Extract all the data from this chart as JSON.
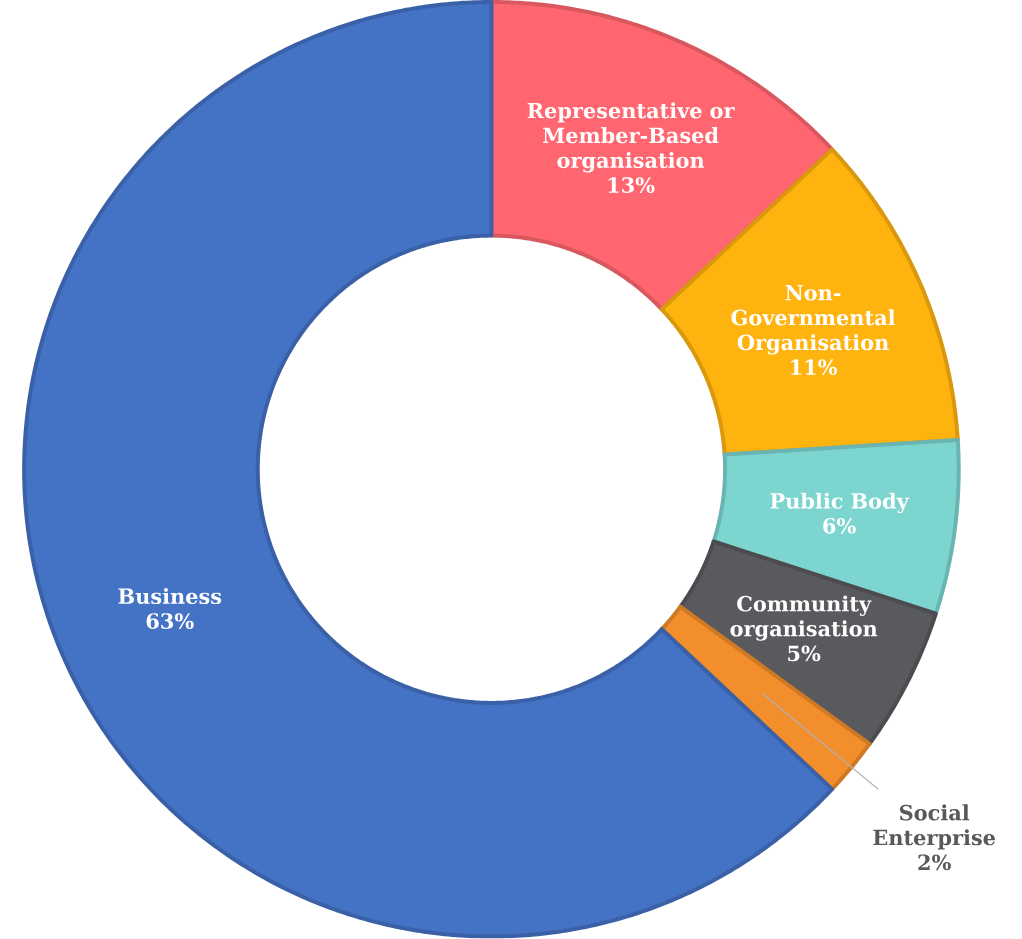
{
  "chart_data": {
    "type": "donut",
    "categories": [
      "Representative or Member-Based organisation",
      "Non-Governmental Organisation",
      "Public Body",
      "Community organisation",
      "Social Enterprise",
      "Business"
    ],
    "values": [
      13,
      11,
      6,
      5,
      2,
      63
    ],
    "value_labels": [
      "13%",
      "11%",
      "6%",
      "5%",
      "2%",
      "63%"
    ],
    "colors": [
      "#ff6670",
      "#ffb30f",
      "#7dd5d0",
      "#595a5e",
      "#f28e2b",
      "#4472c4"
    ]
  }
}
